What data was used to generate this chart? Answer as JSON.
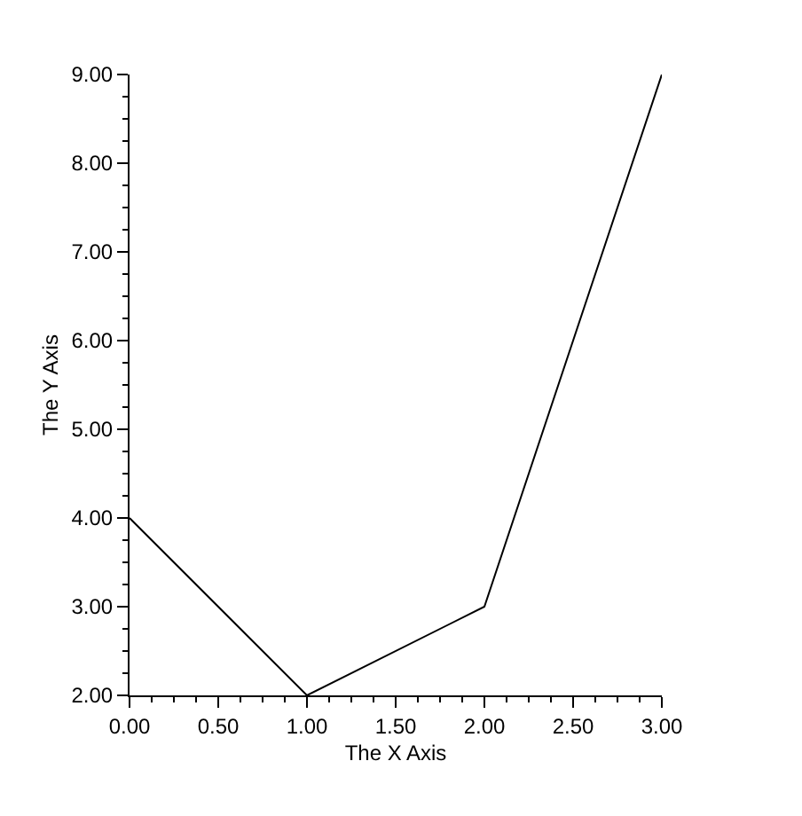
{
  "chart_data": {
    "type": "line",
    "xlabel": "The X Axis",
    "ylabel": "The Y Axis",
    "x": [
      0,
      1,
      2,
      3
    ],
    "series": [
      {
        "color": "#000000",
        "values": [
          4,
          2,
          3,
          9
        ]
      }
    ],
    "xlim": [
      0,
      3
    ],
    "xticks": [
      {
        "value": 0,
        "label": "0.00"
      },
      {
        "value": 0.125,
        "label": null
      },
      {
        "value": 0.25,
        "label": null
      },
      {
        "value": 0.375,
        "label": null
      },
      {
        "value": 0.5,
        "label": "0.50"
      },
      {
        "value": 0.625,
        "label": null
      },
      {
        "value": 0.75,
        "label": null
      },
      {
        "value": 0.875,
        "label": null
      },
      {
        "value": 1,
        "label": "1.00"
      },
      {
        "value": 1.125,
        "label": null
      },
      {
        "value": 1.25,
        "label": null
      },
      {
        "value": 1.375,
        "label": null
      },
      {
        "value": 1.5,
        "label": "1.50"
      },
      {
        "value": 1.625,
        "label": null
      },
      {
        "value": 1.75,
        "label": null
      },
      {
        "value": 1.875,
        "label": null
      },
      {
        "value": 2,
        "label": "2.00"
      },
      {
        "value": 2.125,
        "label": null
      },
      {
        "value": 2.25,
        "label": null
      },
      {
        "value": 2.375,
        "label": null
      },
      {
        "value": 2.5,
        "label": "2.50"
      },
      {
        "value": 2.625,
        "label": null
      },
      {
        "value": 2.75,
        "label": null
      },
      {
        "value": 2.875,
        "label": null
      },
      {
        "value": 3,
        "label": "3.00"
      }
    ],
    "ylim": [
      2,
      9
    ],
    "yticks": [
      {
        "value": 2,
        "label": "2.00"
      },
      {
        "value": 2.25,
        "label": null
      },
      {
        "value": 2.5,
        "label": null
      },
      {
        "value": 2.75,
        "label": null
      },
      {
        "value": 3,
        "label": "3.00"
      },
      {
        "value": 3.25,
        "label": null
      },
      {
        "value": 3.5,
        "label": null
      },
      {
        "value": 3.75,
        "label": null
      },
      {
        "value": 4,
        "label": "4.00"
      },
      {
        "value": 4.25,
        "label": null
      },
      {
        "value": 4.5,
        "label": null
      },
      {
        "value": 4.75,
        "label": null
      },
      {
        "value": 5,
        "label": "5.00"
      },
      {
        "value": 5.25,
        "label": null
      },
      {
        "value": 5.5,
        "label": null
      },
      {
        "value": 5.75,
        "label": null
      },
      {
        "value": 6,
        "label": "6.00"
      },
      {
        "value": 6.25,
        "label": null
      },
      {
        "value": 6.5,
        "label": null
      },
      {
        "value": 6.75,
        "label": null
      },
      {
        "value": 7,
        "label": "7.00"
      },
      {
        "value": 7.25,
        "label": null
      },
      {
        "value": 7.5,
        "label": null
      },
      {
        "value": 7.75,
        "label": null
      },
      {
        "value": 8,
        "label": "8.00"
      },
      {
        "value": 8.25,
        "label": null
      },
      {
        "value": 8.5,
        "label": null
      },
      {
        "value": 8.75,
        "label": null
      },
      {
        "value": 9,
        "label": "9.00"
      }
    ],
    "grid": false,
    "line_style": "solid"
  }
}
